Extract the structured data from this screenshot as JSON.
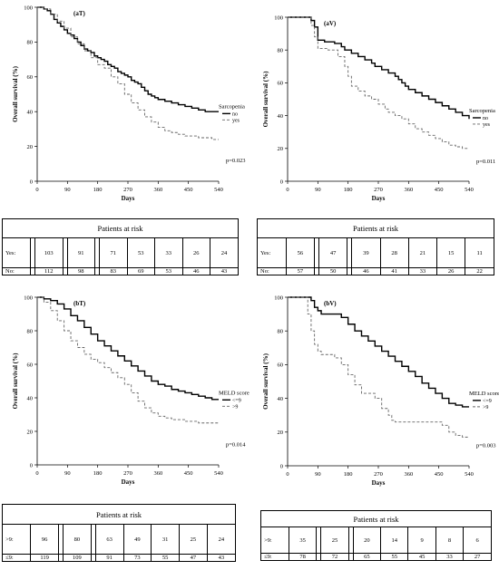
{
  "chart_data": [
    {
      "type": "line",
      "panel_label": "(aT)",
      "xlabel": "Days",
      "ylabel": "Overall survival (%)",
      "xlim": [
        0,
        540
      ],
      "ylim": [
        0,
        100
      ],
      "xticks": [
        "0",
        "90",
        "180",
        "270",
        "360",
        "450",
        "540"
      ],
      "yticks": [
        "0",
        "20",
        "40",
        "60",
        "80",
        "100"
      ],
      "legend_title": "Sarcopenia",
      "legend_placement": "right",
      "p_value": "p=0.023",
      "series": [
        {
          "name": "no",
          "style": "solid",
          "x": [
            0,
            10,
            20,
            30,
            40,
            50,
            60,
            70,
            80,
            90,
            100,
            110,
            120,
            130,
            140,
            150,
            160,
            170,
            180,
            190,
            200,
            210,
            220,
            230,
            240,
            250,
            260,
            270,
            280,
            290,
            300,
            310,
            320,
            330,
            340,
            350,
            360,
            380,
            400,
            420,
            440,
            460,
            480,
            500,
            520,
            540
          ],
          "y": [
            100,
            100,
            99,
            98,
            96,
            93,
            91,
            89,
            87,
            85,
            84,
            82,
            80,
            78,
            76,
            75,
            74,
            72,
            71,
            70,
            69,
            67,
            66,
            65,
            63,
            62,
            61,
            60,
            58,
            57,
            56,
            54,
            52,
            50,
            49,
            48,
            47,
            46,
            45,
            44,
            43,
            42,
            41,
            40,
            40,
            40
          ]
        },
        {
          "name": "yes",
          "style": "dashed",
          "x": [
            0,
            20,
            40,
            60,
            80,
            100,
            120,
            140,
            160,
            180,
            200,
            220,
            240,
            260,
            280,
            300,
            320,
            340,
            360,
            380,
            400,
            420,
            440,
            460,
            480,
            500,
            520,
            540
          ],
          "y": [
            100,
            99,
            96,
            92,
            88,
            83,
            79,
            75,
            71,
            67,
            65,
            60,
            56,
            50,
            45,
            41,
            37,
            34,
            31,
            29,
            28,
            27,
            26,
            26,
            25,
            25,
            24,
            24
          ]
        }
      ]
    },
    {
      "type": "line",
      "panel_label": "(aV)",
      "xlabel": "Days",
      "ylabel": "Overall survival (%)",
      "xlim": [
        0,
        540
      ],
      "ylim": [
        0,
        100
      ],
      "xticks": [
        "0",
        "90",
        "180",
        "270",
        "360",
        "450",
        "540"
      ],
      "yticks": [
        "0",
        "20",
        "40",
        "60",
        "80",
        "100"
      ],
      "legend_title": "Sarcopenia",
      "legend_placement": "right",
      "p_value": "p=0.011",
      "series": [
        {
          "name": "no",
          "style": "solid",
          "x": [
            0,
            60,
            70,
            80,
            90,
            110,
            140,
            160,
            170,
            190,
            210,
            230,
            250,
            260,
            280,
            300,
            320,
            330,
            340,
            350,
            360,
            380,
            400,
            420,
            440,
            460,
            480,
            500,
            520,
            540
          ],
          "y": [
            100,
            100,
            98,
            94,
            86,
            85,
            84,
            82,
            80,
            78,
            76,
            74,
            72,
            70,
            68,
            66,
            64,
            62,
            60,
            58,
            56,
            54,
            52,
            50,
            48,
            46,
            44,
            42,
            40,
            38
          ]
        },
        {
          "name": "yes",
          "style": "dashed",
          "x": [
            0,
            60,
            70,
            80,
            90,
            120,
            150,
            170,
            180,
            190,
            210,
            230,
            250,
            270,
            290,
            300,
            320,
            340,
            360,
            380,
            400,
            420,
            440,
            460,
            480,
            500,
            520,
            540
          ],
          "y": [
            100,
            100,
            95,
            88,
            81,
            80,
            76,
            70,
            64,
            58,
            55,
            52,
            50,
            47,
            44,
            42,
            40,
            38,
            35,
            32,
            30,
            28,
            26,
            24,
            22,
            21,
            20,
            20
          ]
        }
      ]
    },
    {
      "type": "line",
      "panel_label": "(bT)",
      "xlabel": "Days",
      "ylabel": "Overall survival (%)",
      "xlim": [
        0,
        540
      ],
      "ylim": [
        0,
        100
      ],
      "xticks": [
        "0",
        "90",
        "180",
        "270",
        "360",
        "450",
        "540"
      ],
      "yticks": [
        "0",
        "20",
        "40",
        "60",
        "80",
        "100"
      ],
      "legend_title": "MELD score",
      "legend_placement": "right",
      "p_value": "p=0.014",
      "series": [
        {
          "name": "<=9",
          "style": "solid",
          "x": [
            0,
            20,
            40,
            60,
            80,
            100,
            120,
            140,
            160,
            180,
            200,
            220,
            240,
            260,
            280,
            300,
            320,
            340,
            360,
            380,
            400,
            420,
            440,
            460,
            480,
            500,
            520,
            540
          ],
          "y": [
            100,
            99,
            98,
            96,
            93,
            89,
            86,
            82,
            78,
            74,
            71,
            68,
            65,
            62,
            59,
            56,
            53,
            50,
            48,
            47,
            45,
            44,
            43,
            42,
            41,
            40,
            39,
            39
          ]
        },
        {
          "name": ">9",
          "style": "dashed",
          "x": [
            0,
            20,
            40,
            60,
            80,
            100,
            120,
            140,
            160,
            180,
            200,
            220,
            240,
            260,
            280,
            300,
            320,
            340,
            360,
            380,
            400,
            420,
            440,
            460,
            480,
            500,
            520,
            540
          ],
          "y": [
            100,
            97,
            92,
            86,
            80,
            74,
            70,
            66,
            63,
            61,
            58,
            55,
            52,
            48,
            43,
            38,
            34,
            31,
            29,
            28,
            27,
            27,
            26,
            26,
            25,
            25,
            25,
            25
          ]
        }
      ]
    },
    {
      "type": "line",
      "panel_label": "(bV)",
      "xlabel": "Days",
      "ylabel": "Overall survival (%)",
      "xlim": [
        0,
        540
      ],
      "ylim": [
        0,
        100
      ],
      "xticks": [
        "0",
        "90",
        "180",
        "270",
        "360",
        "450",
        "540"
      ],
      "yticks": [
        "0",
        "20",
        "40",
        "60",
        "80",
        "100"
      ],
      "legend_title": "MELD score",
      "legend_placement": "right",
      "p_value": "p=0.003",
      "series": [
        {
          "name": "<=9",
          "style": "solid",
          "x": [
            0,
            60,
            70,
            80,
            90,
            100,
            130,
            160,
            180,
            200,
            220,
            240,
            260,
            280,
            300,
            320,
            340,
            360,
            380,
            400,
            420,
            440,
            460,
            480,
            500,
            520,
            540
          ],
          "y": [
            100,
            100,
            98,
            94,
            92,
            90,
            90,
            88,
            84,
            80,
            77,
            74,
            71,
            68,
            65,
            62,
            59,
            56,
            53,
            49,
            46,
            43,
            40,
            37,
            36,
            35,
            35
          ]
        },
        {
          "name": ">9",
          "style": "dashed",
          "x": [
            0,
            50,
            60,
            70,
            80,
            90,
            100,
            120,
            140,
            160,
            180,
            200,
            220,
            240,
            260,
            280,
            290,
            300,
            310,
            320,
            440,
            460,
            480,
            500,
            520,
            540
          ],
          "y": [
            100,
            100,
            90,
            80,
            72,
            68,
            66,
            66,
            64,
            60,
            54,
            48,
            43,
            43,
            40,
            34,
            34,
            30,
            27,
            26,
            26,
            24,
            20,
            18,
            17,
            17
          ]
        }
      ]
    }
  ],
  "risk_tables": [
    {
      "title": "Patients at risk",
      "rows": [
        {
          "label": "Yes:",
          "values": [
            "103",
            "91",
            "71",
            "53",
            "33",
            "26",
            "24"
          ]
        },
        {
          "label": "No:",
          "values": [
            "112",
            "98",
            "83",
            "69",
            "53",
            "46",
            "43"
          ]
        }
      ]
    },
    {
      "title": "Patients at risk",
      "rows": [
        {
          "label": "Yes:",
          "values": [
            "56",
            "47",
            "39",
            "28",
            "21",
            "15",
            "11"
          ]
        },
        {
          "label": "No:",
          "values": [
            "57",
            "50",
            "46",
            "41",
            "33",
            "26",
            "22"
          ]
        }
      ]
    },
    {
      "title": "Patients at risk",
      "rows": [
        {
          "label": ">9:",
          "values": [
            "96",
            "80",
            "63",
            "49",
            "31",
            "25",
            "24"
          ]
        },
        {
          "label": "≤9:",
          "values": [
            "119",
            "109",
            "91",
            "73",
            "55",
            "47",
            "43"
          ]
        }
      ]
    },
    {
      "title": "Patients at risk",
      "rows": [
        {
          "label": ">9:",
          "values": [
            "35",
            "25",
            "20",
            "14",
            "9",
            "8",
            "6"
          ]
        },
        {
          "label": "≤9:",
          "values": [
            "78",
            "72",
            "65",
            "55",
            "45",
            "33",
            "27"
          ]
        }
      ]
    }
  ]
}
